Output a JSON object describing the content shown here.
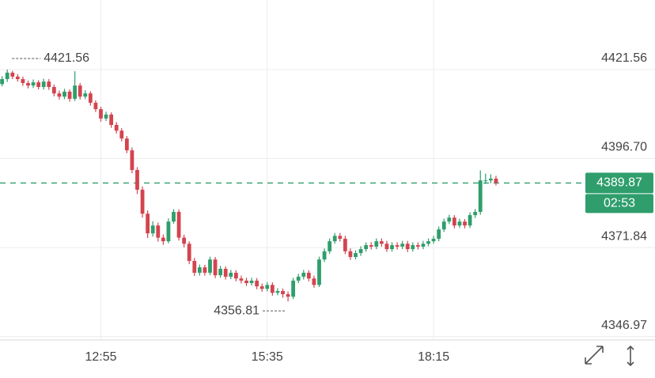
{
  "chart_data": {
    "type": "candlestick",
    "x": [
      "11:20",
      "11:25",
      "11:30",
      "11:35",
      "11:40",
      "11:45",
      "11:50",
      "11:55",
      "12:00",
      "12:05",
      "12:10",
      "12:15",
      "12:20",
      "12:25",
      "12:30",
      "12:35",
      "12:40",
      "12:45",
      "12:50",
      "12:55",
      "13:00",
      "13:05",
      "13:10",
      "13:15",
      "13:20",
      "13:25",
      "13:30",
      "13:35",
      "13:40",
      "13:45",
      "13:50",
      "13:55",
      "14:00",
      "14:05",
      "14:10",
      "14:15",
      "14:20",
      "14:25",
      "14:30",
      "14:35",
      "14:40",
      "14:45",
      "14:50",
      "14:55",
      "15:00",
      "15:05",
      "15:10",
      "15:15",
      "15:20",
      "15:25",
      "15:30",
      "15:35",
      "15:40",
      "15:45",
      "15:50",
      "15:55",
      "16:00",
      "16:05",
      "16:10",
      "16:15",
      "16:20",
      "16:25",
      "16:30",
      "16:35",
      "16:40",
      "16:45",
      "16:50",
      "16:55",
      "17:00",
      "17:05",
      "17:10",
      "17:15",
      "17:20",
      "17:25",
      "17:30",
      "17:35",
      "17:40",
      "17:45",
      "17:50",
      "17:55",
      "18:00",
      "18:05",
      "18:10",
      "18:15",
      "18:20",
      "18:25",
      "18:30",
      "18:35",
      "18:40",
      "18:45",
      "18:50",
      "18:55",
      "19:00",
      "19:05",
      "19:10",
      "19:15"
    ],
    "open": [
      4417.5,
      4418.9,
      4420.7,
      4419.6,
      4418.9,
      4417.8,
      4417.1,
      4418.0,
      4416.7,
      4418.2,
      4416.7,
      4414.9,
      4414.0,
      4415.4,
      4413.4,
      4417.1,
      4414.0,
      4414.9,
      4412.3,
      4410.5,
      4407.9,
      4409.0,
      4406.1,
      4404.5,
      4402.3,
      4399.0,
      4393.5,
      4388.0,
      4381.3,
      4375.8,
      4378.0,
      4374.6,
      4373.6,
      4379.1,
      4381.8,
      4374.6,
      4372.9,
      4368.1,
      4364.8,
      4366.3,
      4364.8,
      4368.5,
      4364.1,
      4365.9,
      4363.7,
      4364.8,
      4363.2,
      4362.6,
      4361.9,
      4362.6,
      4361.0,
      4360.3,
      4361.4,
      4359.2,
      4359.7,
      4358.8,
      4358.1,
      4362.6,
      4363.7,
      4364.8,
      4363.2,
      4361.4,
      4368.5,
      4370.8,
      4373.6,
      4375.1,
      4374.3,
      4370.8,
      4369.2,
      4370.3,
      4371.4,
      4372.5,
      4372.1,
      4373.6,
      4372.9,
      4371.4,
      4372.5,
      4372.1,
      4372.9,
      4371.4,
      4372.5,
      4372.1,
      4372.9,
      4373.6,
      4374.3,
      4376.9,
      4379.1,
      4380.2,
      4378.0,
      4379.1,
      4378.0,
      4380.9,
      4381.8,
      4390.6,
      4390.6,
      4391.1
    ],
    "high": [
      4419.7,
      4421.56,
      4421.2,
      4420.3,
      4419.6,
      4418.5,
      4418.8,
      4418.6,
      4419.0,
      4418.9,
      4417.4,
      4415.7,
      4416.2,
      4416.0,
      4421.1,
      4417.8,
      4415.8,
      4415.5,
      4413.0,
      4411.2,
      4409.8,
      4409.6,
      4406.9,
      4405.2,
      4403.0,
      4399.8,
      4394.3,
      4388.9,
      4382.2,
      4379.2,
      4378.8,
      4375.5,
      4380.0,
      4382.6,
      4382.5,
      4375.4,
      4373.6,
      4368.9,
      4367.1,
      4367.0,
      4369.3,
      4369.2,
      4366.7,
      4366.6,
      4365.6,
      4365.5,
      4364.0,
      4363.4,
      4363.4,
      4363.3,
      4361.8,
      4362.2,
      4362.1,
      4360.5,
      4360.4,
      4359.6,
      4363.4,
      4364.5,
      4365.6,
      4365.5,
      4364.0,
      4369.3,
      4371.6,
      4374.4,
      4375.9,
      4375.9,
      4375.1,
      4371.6,
      4371.1,
      4372.2,
      4373.3,
      4373.3,
      4374.4,
      4374.4,
      4373.7,
      4373.3,
      4373.3,
      4373.7,
      4373.7,
      4373.3,
      4373.3,
      4373.7,
      4374.4,
      4375.1,
      4377.7,
      4379.9,
      4381.0,
      4380.9,
      4379.9,
      4379.8,
      4381.7,
      4382.6,
      4393.4,
      4392.5,
      4392.3,
      4391.9
    ],
    "low": [
      4416.9,
      4418.1,
      4418.9,
      4418.2,
      4417.0,
      4416.3,
      4416.4,
      4416.0,
      4416.0,
      4415.9,
      4414.1,
      4413.2,
      4413.3,
      4412.6,
      4412.8,
      4413.2,
      4413.3,
      4411.5,
      4409.7,
      4407.0,
      4407.2,
      4405.3,
      4403.7,
      4401.5,
      4398.2,
      4392.6,
      4386.8,
      4380.2,
      4374.5,
      4374.9,
      4373.5,
      4372.6,
      4373.0,
      4378.5,
      4373.8,
      4371.9,
      4367.2,
      4363.9,
      4364.0,
      4364.0,
      4364.1,
      4363.3,
      4363.4,
      4362.9,
      4363.0,
      4362.4,
      4361.8,
      4361.1,
      4361.2,
      4360.2,
      4359.5,
      4359.6,
      4358.4,
      4358.5,
      4357.8,
      4356.81,
      4357.4,
      4361.9,
      4362.9,
      4362.4,
      4360.6,
      4360.8,
      4367.8,
      4370.1,
      4372.9,
      4373.5,
      4370.0,
      4368.4,
      4368.5,
      4369.5,
      4370.7,
      4371.3,
      4371.4,
      4372.1,
      4370.6,
      4370.7,
      4371.3,
      4371.4,
      4370.6,
      4370.7,
      4371.3,
      4371.4,
      4372.2,
      4372.9,
      4373.6,
      4376.2,
      4378.4,
      4377.2,
      4377.3,
      4377.2,
      4377.3,
      4380.1,
      4381.0,
      4389.6,
      4389.8,
      4389.2
    ],
    "close": [
      4418.9,
      4420.7,
      4419.6,
      4418.9,
      4417.8,
      4417.1,
      4418.0,
      4416.7,
      4418.2,
      4416.7,
      4414.9,
      4414.0,
      4415.4,
      4413.4,
      4417.1,
      4414.0,
      4414.9,
      4412.3,
      4410.5,
      4407.9,
      4409.0,
      4406.1,
      4404.5,
      4402.3,
      4399.0,
      4393.5,
      4388.0,
      4381.3,
      4375.8,
      4378.0,
      4374.6,
      4373.6,
      4379.1,
      4381.8,
      4374.6,
      4372.9,
      4368.1,
      4364.8,
      4366.3,
      4364.8,
      4368.5,
      4364.1,
      4365.9,
      4363.7,
      4364.8,
      4363.2,
      4362.6,
      4361.9,
      4362.6,
      4361.0,
      4360.3,
      4361.4,
      4359.2,
      4359.7,
      4358.8,
      4358.1,
      4362.6,
      4363.7,
      4364.8,
      4363.2,
      4361.4,
      4368.5,
      4370.8,
      4373.6,
      4375.1,
      4374.3,
      4370.8,
      4369.2,
      4370.3,
      4371.4,
      4372.5,
      4372.1,
      4373.6,
      4372.9,
      4371.4,
      4372.5,
      4372.1,
      4372.9,
      4371.4,
      4372.5,
      4372.1,
      4372.9,
      4373.6,
      4374.3,
      4376.9,
      4379.1,
      4380.2,
      4378.0,
      4379.1,
      4378.0,
      4380.9,
      4381.8,
      4390.6,
      4390.6,
      4391.1,
      4389.87
    ],
    "up_color": "#2f9e6c",
    "down_color": "#d3444f",
    "xlim": [
      "11:18",
      "20:41"
    ],
    "xticks": [
      "12:55",
      "15:35",
      "18:15"
    ],
    "ylim": [
      4346.0,
      4441.0
    ],
    "yticks": [
      {
        "value": 4346.97,
        "label": "4346.97"
      },
      {
        "value": 4371.84,
        "label": "4371.84"
      },
      {
        "value": 4396.7,
        "label": "4396.70"
      },
      {
        "value": 4421.56,
        "label": "4421.56"
      }
    ],
    "grid": true,
    "high_label": 4421.56,
    "low_label": 4356.81,
    "last_price": 4389.87,
    "countdown": "02:53"
  }
}
